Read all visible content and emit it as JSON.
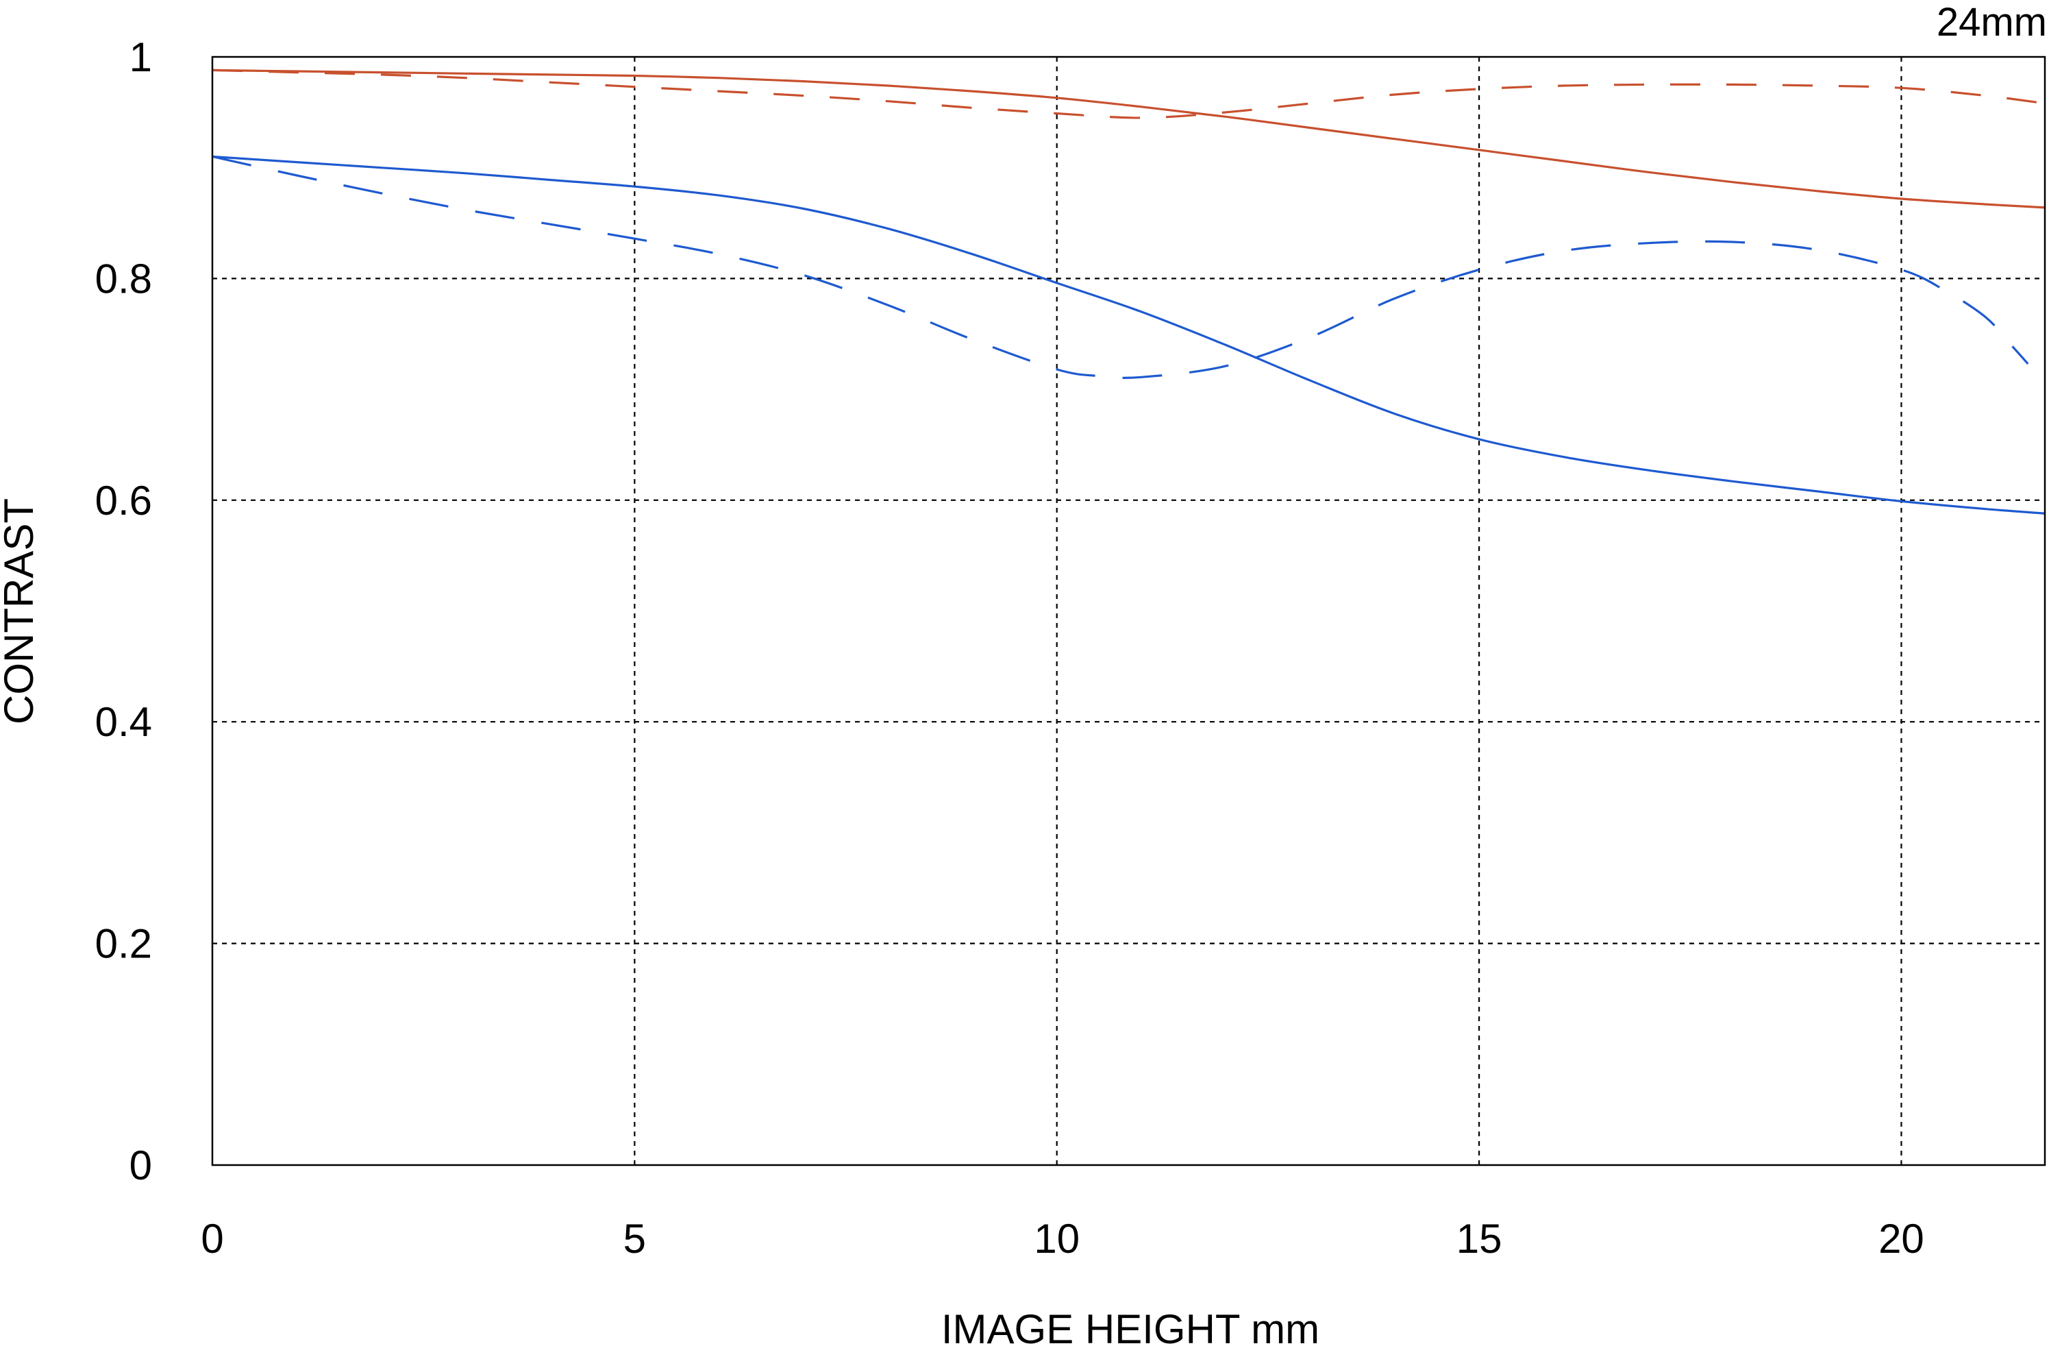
{
  "chart_data": {
    "type": "line",
    "title": "24mm",
    "xlabel": "IMAGE HEIGHT  mm",
    "ylabel": "CONTRAST",
    "xlim": [
      0,
      21.7
    ],
    "ylim": [
      0,
      1
    ],
    "x_ticks": [
      0,
      5,
      10,
      15,
      20
    ],
    "x_tick_labels": [
      "0",
      "5",
      "10",
      "15",
      "20"
    ],
    "y_ticks": [
      0,
      0.2,
      0.4,
      0.6,
      0.8,
      1
    ],
    "y_tick_labels": [
      "0",
      "0.2",
      "0.4",
      "0.6",
      "0.8",
      "1"
    ],
    "grid": true,
    "colors": {
      "orange": "#c8502e",
      "blue": "#1e5ad0",
      "grid": "#000000"
    },
    "series": [
      {
        "color": "#c8502e",
        "style": "solid",
        "points": [
          [
            0,
            0.988
          ],
          [
            1,
            0.987
          ],
          [
            2,
            0.986
          ],
          [
            3,
            0.985
          ],
          [
            4,
            0.984
          ],
          [
            5,
            0.983
          ],
          [
            6,
            0.981
          ],
          [
            7,
            0.978
          ],
          [
            8,
            0.974
          ],
          [
            9,
            0.969
          ],
          [
            10,
            0.963
          ],
          [
            11,
            0.955
          ],
          [
            12,
            0.946
          ],
          [
            13,
            0.936
          ],
          [
            14,
            0.926
          ],
          [
            15,
            0.916
          ],
          [
            16,
            0.906
          ],
          [
            17,
            0.896
          ],
          [
            18,
            0.887
          ],
          [
            19,
            0.879
          ],
          [
            20,
            0.872
          ],
          [
            21,
            0.867
          ],
          [
            21.7,
            0.864
          ]
        ]
      },
      {
        "color": "#c8502e",
        "style": "dashed",
        "points": [
          [
            0,
            0.988
          ],
          [
            1,
            0.986
          ],
          [
            2,
            0.984
          ],
          [
            3,
            0.981
          ],
          [
            4,
            0.977
          ],
          [
            5,
            0.973
          ],
          [
            6,
            0.969
          ],
          [
            7,
            0.965
          ],
          [
            8,
            0.96
          ],
          [
            9,
            0.954
          ],
          [
            10,
            0.949
          ],
          [
            11,
            0.945
          ],
          [
            12,
            0.95
          ],
          [
            13,
            0.958
          ],
          [
            14,
            0.966
          ],
          [
            15,
            0.971
          ],
          [
            16,
            0.974
          ],
          [
            17,
            0.975
          ],
          [
            18,
            0.975
          ],
          [
            19,
            0.974
          ],
          [
            20,
            0.972
          ],
          [
            21,
            0.965
          ],
          [
            21.7,
            0.958
          ]
        ]
      },
      {
        "color": "#1e5ad0",
        "style": "solid",
        "points": [
          [
            0,
            0.91
          ],
          [
            1,
            0.905
          ],
          [
            2,
            0.9
          ],
          [
            3,
            0.895
          ],
          [
            4,
            0.889
          ],
          [
            5,
            0.883
          ],
          [
            6,
            0.875
          ],
          [
            7,
            0.863
          ],
          [
            8,
            0.845
          ],
          [
            9,
            0.822
          ],
          [
            10,
            0.796
          ],
          [
            11,
            0.77
          ],
          [
            12,
            0.74
          ],
          [
            13,
            0.708
          ],
          [
            14,
            0.678
          ],
          [
            15,
            0.655
          ],
          [
            16,
            0.639
          ],
          [
            17,
            0.627
          ],
          [
            18,
            0.617
          ],
          [
            19,
            0.608
          ],
          [
            20,
            0.599
          ],
          [
            21,
            0.592
          ],
          [
            21.7,
            0.588
          ]
        ]
      },
      {
        "color": "#1e5ad0",
        "style": "dashed",
        "points": [
          [
            0,
            0.91
          ],
          [
            1,
            0.893
          ],
          [
            2,
            0.877
          ],
          [
            3,
            0.862
          ],
          [
            4,
            0.849
          ],
          [
            5,
            0.836
          ],
          [
            6,
            0.822
          ],
          [
            7,
            0.803
          ],
          [
            8,
            0.776
          ],
          [
            9,
            0.745
          ],
          [
            10,
            0.718
          ],
          [
            10.5,
            0.712
          ],
          [
            11,
            0.711
          ],
          [
            12,
            0.721
          ],
          [
            13,
            0.747
          ],
          [
            14,
            0.782
          ],
          [
            15,
            0.808
          ],
          [
            16,
            0.825
          ],
          [
            17,
            0.832
          ],
          [
            18,
            0.833
          ],
          [
            19,
            0.826
          ],
          [
            20,
            0.808
          ],
          [
            20.5,
            0.79
          ],
          [
            21,
            0.765
          ],
          [
            21.3,
            0.74
          ],
          [
            21.5,
            0.723
          ]
        ]
      }
    ]
  }
}
